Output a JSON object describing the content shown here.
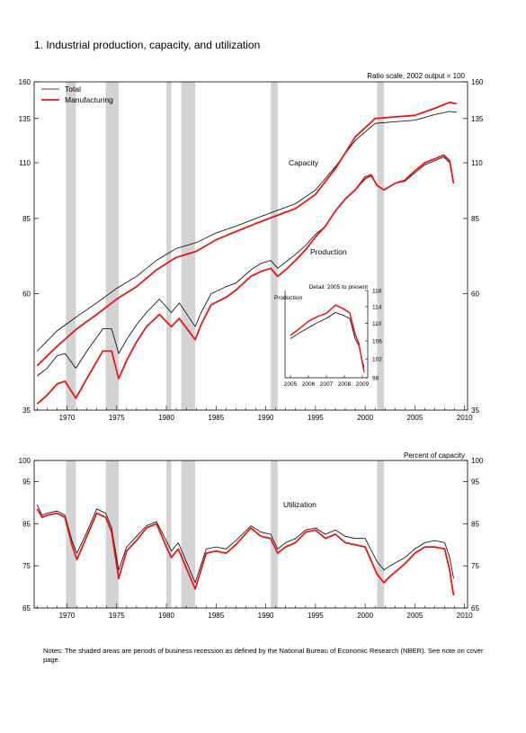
{
  "page": {
    "title": "1.  Industrial production, capacity, and utilization",
    "notes": "Notes: The shaded areas are periods of business recession as defined by the National Bureau of Economic Research (NBER). See note on cover page."
  },
  "colors": {
    "total": "#000000",
    "manufacturing": "#e8161b",
    "recession": "#d3d3d3"
  },
  "chart_data": [
    {
      "type": "line",
      "scale_note": "Ratio scale, 2002 output = 100",
      "y_scale": "log",
      "xlim": [
        1966.7,
        2010.3
      ],
      "ylim": [
        35,
        160
      ],
      "yticks": [
        35,
        60,
        85,
        110,
        135,
        160
      ],
      "xticks": [
        1970,
        1975,
        1980,
        1985,
        1990,
        1995,
        2000,
        2005,
        2010
      ],
      "legend_position": "top-left",
      "annotations": [
        "Capacity",
        "Production"
      ],
      "recessions": [
        [
          1969.9,
          1970.9
        ],
        [
          1973.9,
          1975.2
        ],
        [
          1980.0,
          1980.5
        ],
        [
          1981.5,
          1982.9
        ],
        [
          1990.5,
          1991.2
        ],
        [
          2001.2,
          2001.9
        ]
      ],
      "series": [
        {
          "name": "Total",
          "group": "capacity",
          "x": [
            1967,
            1969,
            1971,
            1973,
            1975,
            1977,
            1979,
            1981,
            1983,
            1985,
            1987,
            1989,
            1991,
            1993,
            1995,
            1997,
            1999,
            2001,
            2003,
            2005,
            2007,
            2008.5,
            2009.2
          ],
          "y": [
            46,
            50.5,
            54,
            57.5,
            61.5,
            65,
            70,
            74,
            76,
            79.5,
            82,
            85,
            88,
            91,
            97,
            108,
            122,
            132,
            133,
            134,
            137.5,
            139.5,
            139
          ]
        },
        {
          "name": "Manufacturing",
          "group": "capacity",
          "x": [
            1967,
            1969,
            1971,
            1973,
            1975,
            1977,
            1979,
            1981,
            1983,
            1985,
            1987,
            1989,
            1991,
            1993,
            1995,
            1997,
            1999,
            2001,
            2003,
            2005,
            2007,
            2008.5,
            2009.2
          ],
          "y": [
            43,
            47,
            51,
            54.5,
            58.5,
            62,
            67,
            71,
            73,
            77,
            80,
            83,
            86,
            89,
            95,
            107,
            124,
            135,
            136,
            137,
            141.5,
            145.5,
            144.5
          ]
        },
        {
          "name": "Total",
          "group": "production",
          "x": [
            1967,
            1968,
            1969,
            1969.8,
            1970.9,
            1972,
            1973.6,
            1974.5,
            1975.2,
            1976,
            1977,
            1978,
            1979.3,
            1980.5,
            1981.3,
            1982.9,
            1983.5,
            1984.5,
            1986,
            1987,
            1988.5,
            1989.5,
            1990.5,
            1991.2,
            1992,
            1993,
            1994,
            1995,
            1996,
            1997,
            1998,
            1999,
            2000,
            2000.6,
            2001.2,
            2001.9,
            2003,
            2004,
            2005,
            2006,
            2007,
            2007.9,
            2008.5,
            2008.9
          ],
          "y": [
            41,
            42.5,
            45,
            45.5,
            42.5,
            46,
            51,
            51,
            45.5,
            48.5,
            52,
            55,
            58.5,
            55,
            57.5,
            51.5,
            55,
            60,
            62,
            63,
            67,
            69,
            70,
            67.5,
            69.5,
            72,
            75,
            79,
            82,
            88,
            93,
            97,
            102,
            103.5,
            99,
            97,
            100,
            101,
            105,
            109,
            111,
            113,
            110,
            100
          ]
        },
        {
          "name": "Manufacturing",
          "group": "production",
          "x": [
            1967,
            1968,
            1969,
            1969.8,
            1970.9,
            1972,
            1973.6,
            1974.5,
            1975.2,
            1976,
            1977,
            1978,
            1979.3,
            1980.5,
            1981.3,
            1982.9,
            1983.5,
            1984.5,
            1986,
            1987,
            1988.5,
            1989.5,
            1990.5,
            1991.2,
            1992,
            1993,
            1994,
            1995,
            1996,
            1997,
            1998,
            1999,
            2000,
            2000.6,
            2001.2,
            2001.9,
            2003,
            2004,
            2005,
            2006,
            2007,
            2007.9,
            2008.5,
            2008.9
          ],
          "y": [
            36,
            37.5,
            39.5,
            40,
            37,
            40.5,
            46,
            46,
            40.5,
            44,
            48,
            51.5,
            54.5,
            51.5,
            53.5,
            48.5,
            52,
            57,
            59,
            61,
            65,
            66.5,
            67.5,
            65,
            67,
            70,
            73.5,
            78,
            82,
            88,
            93,
            97,
            103,
            104,
            99,
            97,
            100,
            101.5,
            106,
            110,
            112,
            114,
            111,
            100
          ]
        }
      ]
    },
    {
      "type": "line",
      "title": "Detail: 2005 to present",
      "ylabel": "Production",
      "y_scale": "log",
      "xlim": [
        2004.7,
        2009.3
      ],
      "ylim": [
        98,
        118
      ],
      "yticks": [
        98,
        102,
        106,
        110,
        114,
        118
      ],
      "xticks": [
        2005,
        2006,
        2007,
        2008,
        2009
      ],
      "series": [
        {
          "name": "Total",
          "x": [
            2005,
            2005.5,
            2006,
            2006.5,
            2007,
            2007.5,
            2007.9,
            2008.3,
            2008.6,
            2008.8,
            2009.0,
            2009.1
          ],
          "y": [
            106.5,
            107.8,
            109.0,
            110.2,
            111.2,
            112.6,
            112.0,
            111.2,
            106.5,
            105,
            101.5,
            100.2
          ]
        },
        {
          "name": "Manufacturing",
          "x": [
            2005,
            2005.5,
            2006,
            2006.5,
            2007,
            2007.5,
            2007.9,
            2008.3,
            2008.6,
            2008.8,
            2009.0,
            2009.1
          ],
          "y": [
            107.2,
            108.8,
            110.5,
            111.6,
            112.4,
            114.4,
            113.6,
            112.5,
            107.5,
            105.5,
            101.2,
            99.2
          ]
        }
      ]
    },
    {
      "type": "line",
      "scale_note": "Percent of capacity",
      "annotations": [
        "Utilization"
      ],
      "xlim": [
        1966.7,
        2010.3
      ],
      "ylim": [
        65,
        100
      ],
      "yticks": [
        65,
        75,
        85,
        95,
        100
      ],
      "xticks": [
        1970,
        1975,
        1980,
        1985,
        1990,
        1995,
        2000,
        2005,
        2010
      ],
      "series": [
        {
          "name": "Total",
          "x": [
            1967,
            1967.5,
            1968,
            1969,
            1969.8,
            1970.5,
            1971,
            1972,
            1973,
            1973.9,
            1974.5,
            1975.2,
            1976,
            1977,
            1978,
            1979,
            1980.1,
            1980.5,
            1981.2,
            1982.9,
            1984,
            1985,
            1986,
            1987,
            1988.5,
            1989.5,
            1990.5,
            1991.2,
            1992,
            1993,
            1994,
            1995,
            1996,
            1997,
            1998,
            1999,
            2000,
            2001.2,
            2001.9,
            2002.5,
            2004,
            2005,
            2006,
            2007,
            2008,
            2008.5,
            2008.9
          ],
          "y": [
            89.5,
            87,
            87.5,
            88,
            87,
            81,
            78,
            83,
            88.5,
            87.5,
            84,
            74,
            79.5,
            82,
            84.5,
            85.5,
            80.5,
            78.5,
            80.5,
            71,
            79,
            79.5,
            79,
            81,
            84.5,
            83,
            82.5,
            79,
            80.5,
            81.5,
            83.5,
            84,
            82.5,
            83.5,
            82,
            81.5,
            81.5,
            76,
            74,
            75,
            77,
            79,
            80.5,
            81,
            80.5,
            77,
            72
          ]
        },
        {
          "name": "Manufacturing",
          "x": [
            1967,
            1967.5,
            1968,
            1969,
            1969.8,
            1970.5,
            1971,
            1972,
            1973,
            1973.9,
            1974.5,
            1975.2,
            1976,
            1977,
            1978,
            1979,
            1980.1,
            1980.5,
            1981.2,
            1982.9,
            1984,
            1985,
            1986,
            1987,
            1988.5,
            1989.5,
            1990.5,
            1991.2,
            1992,
            1993,
            1994,
            1995,
            1996,
            1997,
            1998,
            1999,
            2000,
            2001.2,
            2001.9,
            2002.5,
            2004,
            2005,
            2006,
            2007,
            2008,
            2008.5,
            2008.9
          ],
          "y": [
            88.5,
            86.5,
            87,
            87.5,
            86.5,
            80,
            76.5,
            82,
            87.5,
            86.5,
            83,
            72,
            78.5,
            81,
            84,
            85,
            79,
            77,
            79,
            69.5,
            78,
            78.5,
            78,
            80,
            84,
            82,
            81.5,
            78,
            79.5,
            80.5,
            83,
            83.5,
            81.5,
            82.5,
            80.5,
            80,
            79.5,
            73,
            71,
            72.5,
            75.5,
            78,
            79.5,
            79.5,
            79,
            74,
            68
          ]
        }
      ]
    }
  ]
}
